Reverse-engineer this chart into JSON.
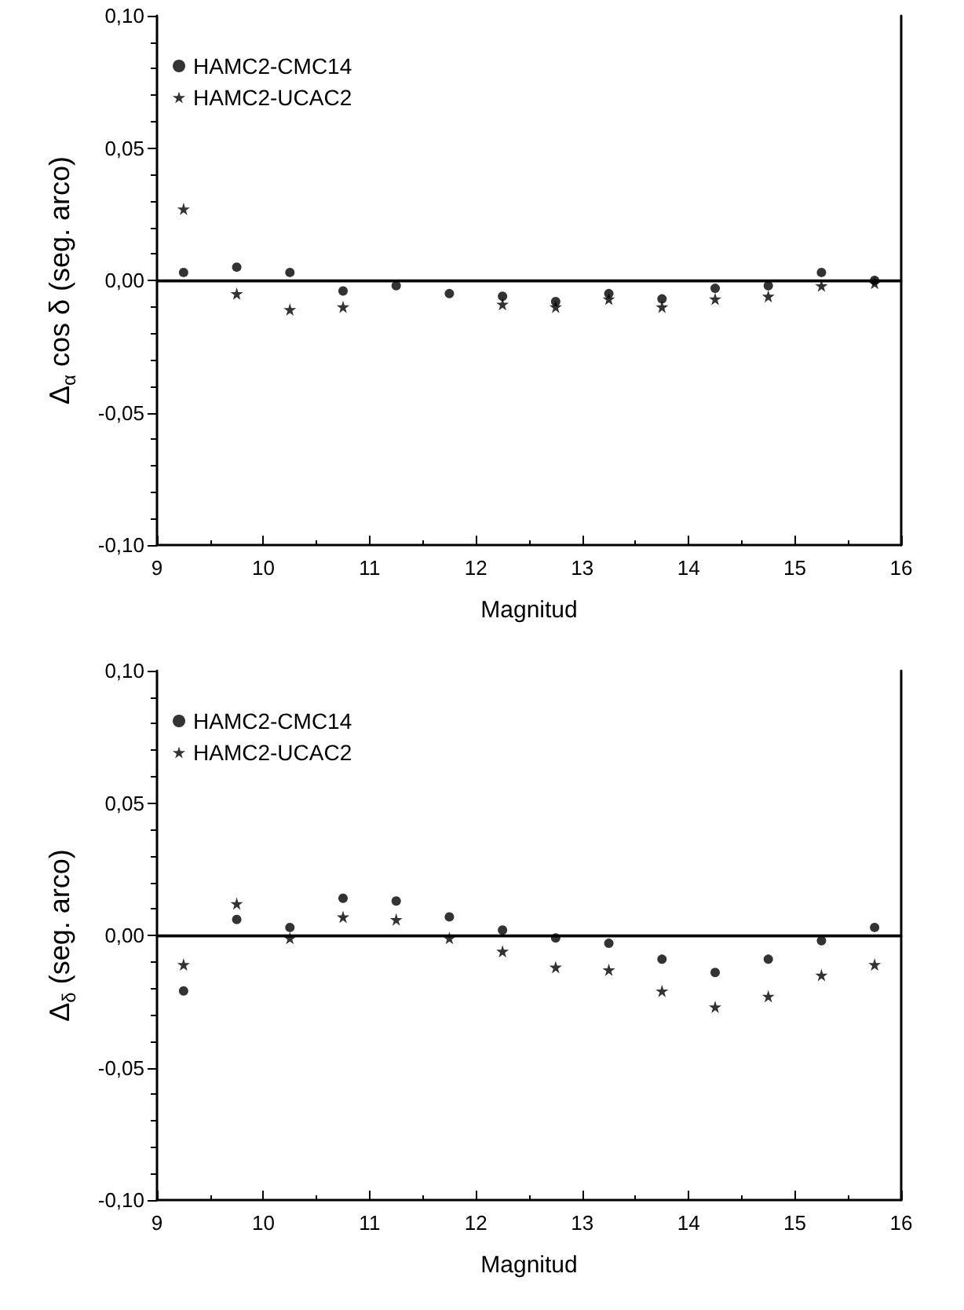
{
  "chart_data": [
    {
      "type": "scatter",
      "xlabel": "Magnitud",
      "ylabel": "Δ$_{α}$ cos δ (seg. arco)",
      "x": [
        9.25,
        9.75,
        10.25,
        10.75,
        11.25,
        11.75,
        12.25,
        12.75,
        13.25,
        13.75,
        14.25,
        14.75,
        15.25,
        15.75
      ],
      "xlim": [
        9,
        16
      ],
      "xticks": [
        9,
        10,
        11,
        12,
        13,
        14,
        15,
        16
      ],
      "ylim": [
        -0.1,
        0.1
      ],
      "yticks": [
        {
          "value": -0.1,
          "label": "-0,10"
        },
        {
          "value": -0.05,
          "label": "-0,05"
        },
        {
          "value": 0,
          "label": "0,00"
        },
        {
          "value": 0.05,
          "label": "0,05"
        },
        {
          "value": 0.1,
          "label": "0,10"
        }
      ],
      "grid": false,
      "legend": "top left",
      "ref_lines": [
        {
          "axis": "y",
          "value": 0,
          "color": "#000000"
        }
      ],
      "series": [
        {
          "name": "HAMC2-CMC14",
          "color": "#000000",
          "marker": "circle",
          "values": [
            0.003,
            0.005,
            0.003,
            -0.004,
            -0.002,
            -0.005,
            -0.006,
            -0.008,
            -0.005,
            -0.007,
            -0.003,
            -0.002,
            0.003,
            0.0
          ]
        },
        {
          "name": "HAMC2-UCAC2",
          "color": "#000000",
          "marker": "star",
          "values": [
            0.027,
            -0.005,
            -0.011,
            -0.01,
            null,
            null,
            -0.009,
            -0.01,
            -0.007,
            -0.01,
            -0.007,
            -0.006,
            -0.002,
            -0.001
          ]
        }
      ]
    },
    {
      "type": "scatter",
      "xlabel": "Magnitud",
      "ylabel": "Δ$_{δ}$ (seg. arco)",
      "x": [
        9.25,
        9.75,
        10.25,
        10.75,
        11.25,
        11.75,
        12.25,
        12.75,
        13.25,
        13.75,
        14.25,
        14.75,
        15.25,
        15.75
      ],
      "xlim": [
        9,
        16
      ],
      "xticks": [
        9,
        10,
        11,
        12,
        13,
        14,
        15,
        16
      ],
      "ylim": [
        -0.1,
        0.1
      ],
      "yticks": [
        {
          "value": -0.1,
          "label": "-0,10"
        },
        {
          "value": -0.05,
          "label": "-0,05"
        },
        {
          "value": 0,
          "label": "0,00"
        },
        {
          "value": 0.05,
          "label": "0,05"
        },
        {
          "value": 0.1,
          "label": "0,10"
        }
      ],
      "grid": false,
      "legend": "top left",
      "ref_lines": [
        {
          "axis": "y",
          "value": 0,
          "color": "#000000"
        }
      ],
      "series": [
        {
          "name": "HAMC2-CMC14",
          "color": "#000000",
          "marker": "circle",
          "values": [
            -0.021,
            0.006,
            0.003,
            0.014,
            0.013,
            0.007,
            0.002,
            -0.001,
            -0.003,
            -0.009,
            -0.014,
            -0.009,
            -0.002,
            0.003
          ]
        },
        {
          "name": "HAMC2-UCAC2",
          "color": "#000000",
          "marker": "star",
          "values": [
            -0.011,
            0.012,
            -0.001,
            0.007,
            0.006,
            -0.001,
            -0.006,
            -0.012,
            -0.013,
            -0.021,
            -0.027,
            -0.023,
            -0.015,
            -0.011
          ]
        }
      ]
    }
  ]
}
